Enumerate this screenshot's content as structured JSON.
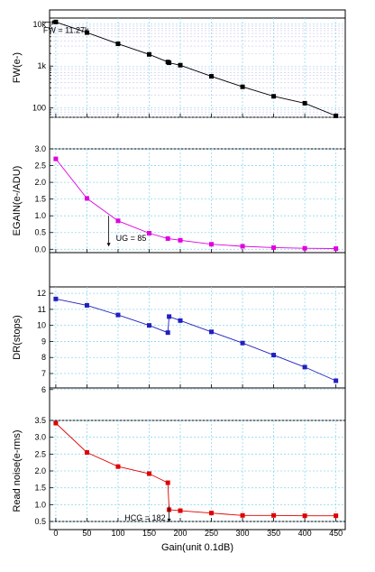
{
  "chart_data": {
    "type": "line",
    "xlabel": "Gain(unit 0.1dB)",
    "xlim": [
      -10,
      465
    ],
    "xticks": [
      0,
      50,
      100,
      150,
      200,
      250,
      300,
      350,
      400,
      450
    ],
    "grid": true,
    "panels": [
      {
        "id": "fw",
        "ylabel": "FW(e-)",
        "scale": "log",
        "ylim": [
          60,
          14000
        ],
        "yticks": [
          100,
          1000,
          10000
        ],
        "ytick_labels": [
          "100",
          "1k",
          "10k"
        ],
        "color": "#000000",
        "annotation": {
          "text": "FW = 11.27k",
          "x": 0,
          "y": 11270
        },
        "series": [
          {
            "x": [
              0,
              50,
              100,
              150,
              180,
              182,
              200,
              250,
              300,
              350,
              400,
              450
            ],
            "y": [
              11270,
              6300,
              3400,
              1900,
              1250,
              1200,
              1050,
              570,
              320,
              190,
              130,
              65
            ]
          }
        ]
      },
      {
        "id": "egain",
        "ylabel": "EGAIN(e-/ADU)",
        "scale": "linear",
        "ylim": [
          -0.1,
          3.0
        ],
        "yticks": [
          0.0,
          0.5,
          1.0,
          1.5,
          2.0,
          2.5,
          3.0
        ],
        "ytick_labels": [
          "0.0",
          "0.5",
          "1.0",
          "1.5",
          "2.0",
          "2.5",
          "3.0"
        ],
        "color": "#e000e0",
        "annotation": {
          "text": "UG = 85",
          "x": 85,
          "y": 1.0
        },
        "series": [
          {
            "x": [
              0,
              50,
              100,
              150,
              180,
              200,
              250,
              300,
              350,
              400,
              450
            ],
            "y": [
              2.7,
              1.52,
              0.85,
              0.48,
              0.32,
              0.27,
              0.15,
              0.09,
              0.05,
              0.03,
              0.02
            ]
          }
        ]
      },
      {
        "id": "dr",
        "ylabel": "DR(stops)",
        "scale": "linear",
        "ylim": [
          6.1,
          12.4
        ],
        "yticks": [
          6,
          7,
          8,
          9,
          10,
          11,
          12
        ],
        "ytick_labels": [
          "6",
          "7",
          "8",
          "9",
          "10",
          "11",
          "12"
        ],
        "color": "#2020c0",
        "series": [
          {
            "x": [
              0,
              50,
              100,
              150,
              180,
              182,
              200,
              250,
              300,
              350,
              400,
              450
            ],
            "y": [
              11.65,
              11.25,
              10.65,
              10.0,
              9.55,
              10.55,
              10.3,
              9.6,
              8.9,
              8.15,
              7.4,
              6.55
            ]
          }
        ]
      },
      {
        "id": "rn",
        "ylabel": "Read noise(e-rms)",
        "scale": "linear",
        "ylim": [
          0.5,
          3.5
        ],
        "yticks": [
          0.5,
          1.0,
          1.5,
          2.0,
          2.5,
          3.0,
          3.5
        ],
        "ytick_labels": [
          "0.5",
          "1.0",
          "1.5",
          "2.0",
          "2.5",
          "3.0",
          "3.5"
        ],
        "color": "#e00000",
        "annotation": {
          "text": "HCG = 182",
          "x": 182,
          "y": 0.85
        },
        "series": [
          {
            "x": [
              0,
              50,
              100,
              150,
              180,
              182,
              200,
              250,
              300,
              350,
              400,
              450
            ],
            "y": [
              3.42,
              2.55,
              2.13,
              1.92,
              1.65,
              0.85,
              0.82,
              0.75,
              0.68,
              0.68,
              0.67,
              0.67
            ]
          }
        ]
      }
    ]
  }
}
